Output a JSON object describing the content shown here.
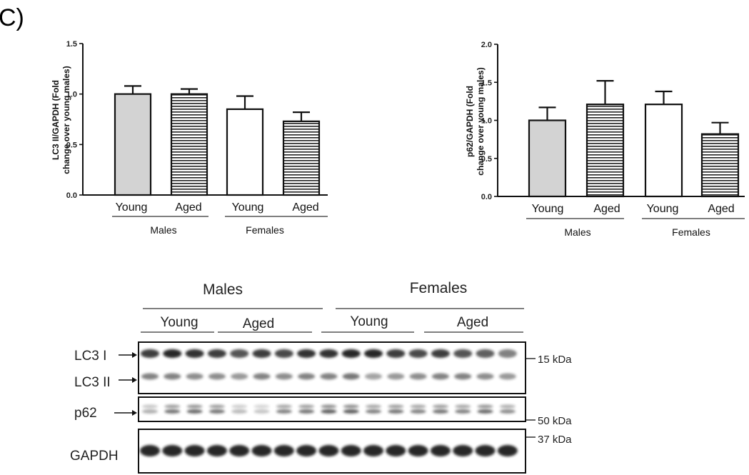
{
  "panel_label": "C)",
  "chart_data": [
    {
      "type": "bar",
      "ylabel_line1": "LC3 II/GAPDH (Fold",
      "ylabel_line2": "change over young males)",
      "ylim": [
        0,
        1.5
      ],
      "yticks": [
        "0.0",
        "0.5",
        "1.0",
        "1.5"
      ],
      "categories": [
        "Young",
        "Aged",
        "Young",
        "Aged"
      ],
      "groups": [
        "Males",
        "Females"
      ],
      "values": [
        1.0,
        1.0,
        0.85,
        0.73
      ],
      "errors": [
        0.08,
        0.05,
        0.13,
        0.09
      ],
      "fills": [
        "gray",
        "horizontal-stripes",
        "white",
        "horizontal-stripes"
      ],
      "grid": false
    },
    {
      "type": "bar",
      "ylabel_line1": "p62/GAPDH (Fold",
      "ylabel_line2": "change over young males)",
      "ylim": [
        0,
        2.0
      ],
      "yticks": [
        "0.0",
        "0.5",
        "1.0",
        "1.5",
        "2.0"
      ],
      "categories": [
        "Young",
        "Aged",
        "Young",
        "Aged"
      ],
      "groups": [
        "Males",
        "Females"
      ],
      "values": [
        1.0,
        1.21,
        1.21,
        0.82
      ],
      "errors": [
        0.17,
        0.31,
        0.17,
        0.15
      ],
      "fills": [
        "gray",
        "horizontal-stripes",
        "white",
        "horizontal-stripes"
      ],
      "grid": false
    }
  ],
  "blot": {
    "groups": [
      "Males",
      "Females"
    ],
    "subgroups": [
      "Young",
      "Aged",
      "Young",
      "Aged"
    ],
    "bands": [
      {
        "label": "LC3 I",
        "marker": "15 kDa"
      },
      {
        "label": "LC3 II"
      },
      {
        "label": "p62",
        "marker": "50 kDa"
      },
      {
        "label": "GAPDH",
        "marker": "37 kDa"
      }
    ]
  },
  "colors": {
    "gray_bar": "#d3d3d3",
    "ink": "#111111",
    "band": "#1a1a1a"
  }
}
